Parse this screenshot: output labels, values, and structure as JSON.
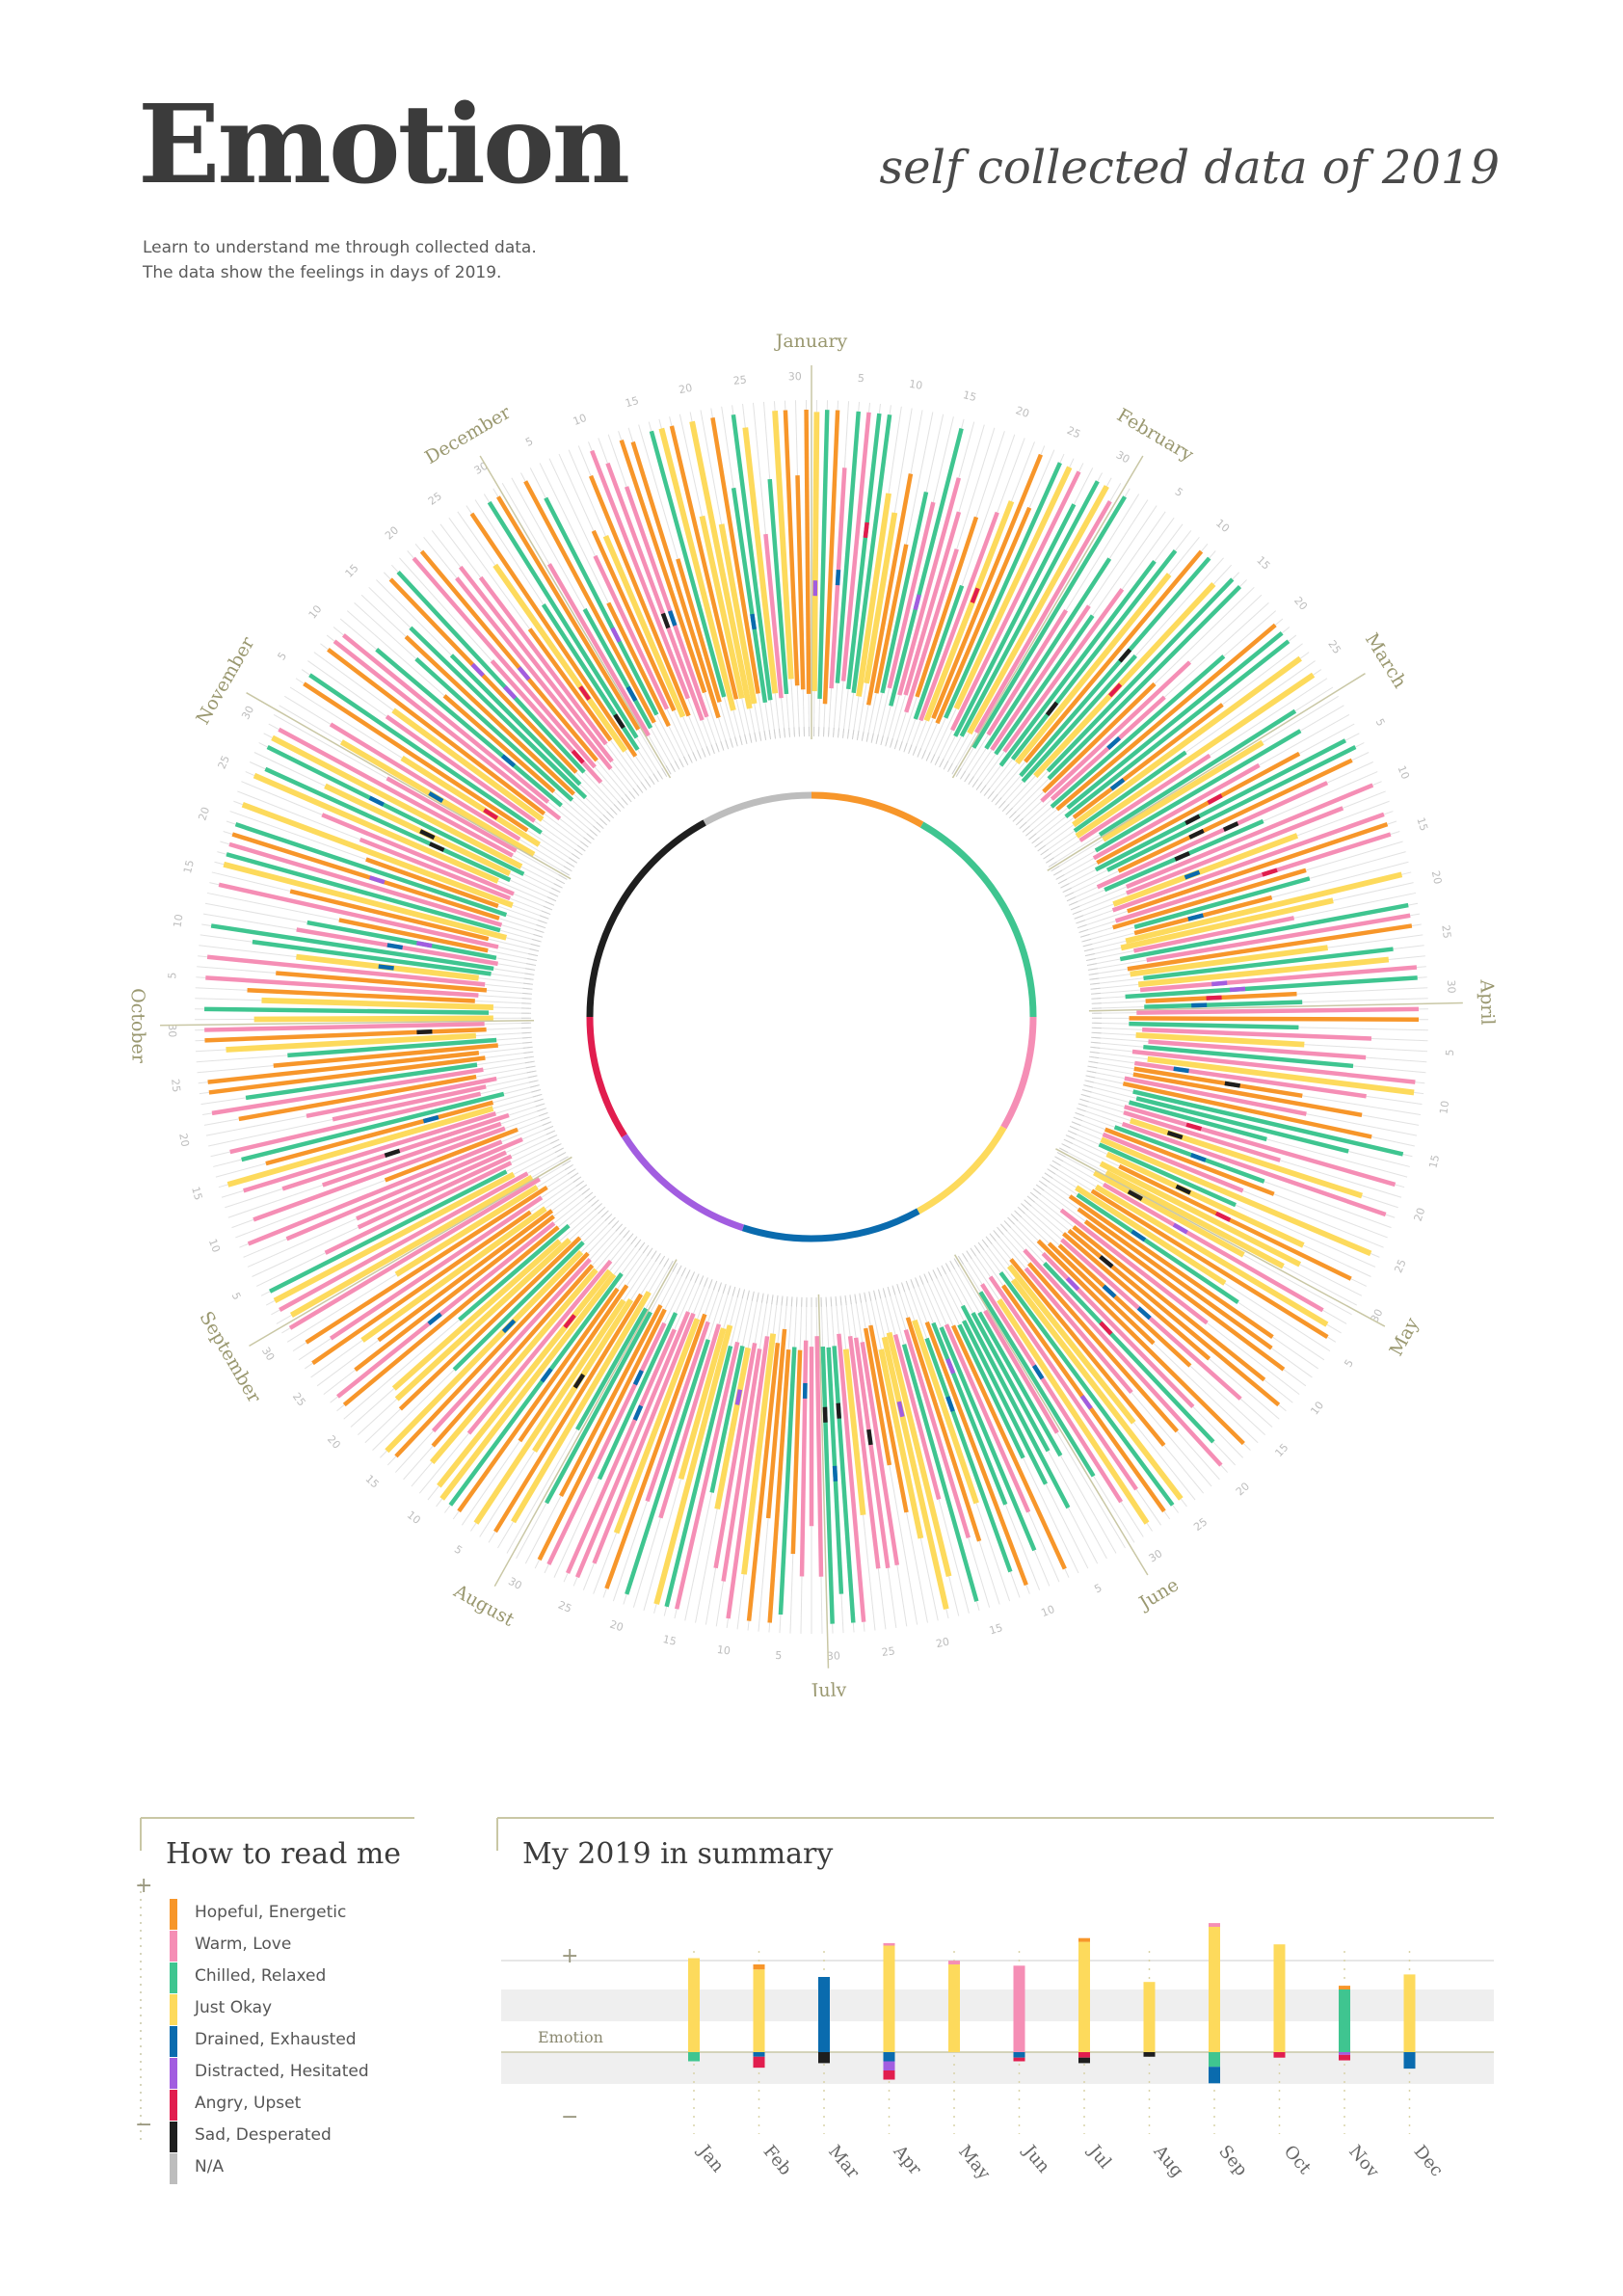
{
  "header": {
    "title": "Emotion",
    "subtitle": "self collected data of 2019",
    "intro_line1": "Learn to understand me through collected data.",
    "intro_line2": "The data show the feelings in days of 2019."
  },
  "colors": {
    "hopeful": "#F7962A",
    "warm": "#F58EB5",
    "chilled": "#3FC590",
    "okay": "#FDDA5C",
    "drained": "#0A6BAE",
    "distracted": "#A25DE0",
    "angry": "#E11D4E",
    "sad": "#1E1E1E",
    "na": "#BDBDBD",
    "accent": "#C9C7A5",
    "grid": "#E2E2E2"
  },
  "legend": {
    "title": "How to read me",
    "plus": "+",
    "minus": "−",
    "items": [
      {
        "key": "hopeful",
        "label": "Hopeful, Energetic"
      },
      {
        "key": "warm",
        "label": "Warm, Love"
      },
      {
        "key": "chilled",
        "label": "Chilled, Relaxed"
      },
      {
        "key": "okay",
        "label": "Just Okay"
      },
      {
        "key": "drained",
        "label": "Drained, Exhausted"
      },
      {
        "key": "distracted",
        "label": "Distracted, Hesitated"
      },
      {
        "key": "angry",
        "label": "Angry, Upset"
      },
      {
        "key": "sad",
        "label": "Sad, Desperated"
      },
      {
        "key": "na",
        "label": "N/A"
      }
    ]
  },
  "summary": {
    "title": "My 2019 in summary",
    "plus": "+",
    "minus": "−",
    "axis_label": "Emotion"
  },
  "chart_data": [
    {
      "type": "radial-bar",
      "description_free": true,
      "months": [
        "January",
        "February",
        "March",
        "April",
        "May",
        "June",
        "July",
        "August",
        "September",
        "October",
        "November",
        "December"
      ],
      "day_ticks": [
        "5",
        "10",
        "15",
        "20",
        "25",
        "30"
      ],
      "ring_segments": [
        {
          "key": "hopeful",
          "from": 0.0,
          "to": 0.083
        },
        {
          "key": "chilled",
          "from": 0.083,
          "to": 0.25
        },
        {
          "key": "warm",
          "from": 0.25,
          "to": 0.333
        },
        {
          "key": "okay",
          "from": 0.333,
          "to": 0.42
        },
        {
          "key": "drained",
          "from": 0.42,
          "to": 0.55
        },
        {
          "key": "distracted",
          "from": 0.55,
          "to": 0.66
        },
        {
          "key": "angry",
          "from": 0.66,
          "to": 0.75
        },
        {
          "key": "sad",
          "from": 0.75,
          "to": 0.92
        },
        {
          "key": "na",
          "from": 0.92,
          "to": 1.0
        }
      ]
    },
    {
      "type": "bar",
      "categories": [
        "Jan",
        "Feb",
        "Mar",
        "Apr",
        "May",
        "Jun",
        "Jul",
        "Aug",
        "Sep",
        "Oct",
        "Nov",
        "Dec"
      ],
      "series_positive": [
        [
          {
            "key": "okay",
            "value": 75
          }
        ],
        [
          {
            "key": "okay",
            "value": 66
          },
          {
            "key": "hopeful",
            "value": 4
          }
        ],
        [
          {
            "key": "drained",
            "value": 60
          }
        ],
        [
          {
            "key": "okay",
            "value": 85
          },
          {
            "key": "warm",
            "value": 2
          }
        ],
        [
          {
            "key": "okay",
            "value": 70
          },
          {
            "key": "warm",
            "value": 3
          }
        ],
        [
          {
            "key": "warm",
            "value": 69
          }
        ],
        [
          {
            "key": "okay",
            "value": 88
          },
          {
            "key": "hopeful",
            "value": 3
          }
        ],
        [
          {
            "key": "okay",
            "value": 56
          }
        ],
        [
          {
            "key": "okay",
            "value": 100
          },
          {
            "key": "warm",
            "value": 3
          }
        ],
        [
          {
            "key": "okay",
            "value": 86
          }
        ],
        [
          {
            "key": "chilled",
            "value": 50
          },
          {
            "key": "hopeful",
            "value": 3
          }
        ],
        [
          {
            "key": "okay",
            "value": 62
          }
        ]
      ],
      "series_negative": [
        [
          {
            "key": "chilled",
            "value": 10
          }
        ],
        [
          {
            "key": "drained",
            "value": 5
          },
          {
            "key": "angry",
            "value": 12
          }
        ],
        [
          {
            "key": "sad",
            "value": 12
          }
        ],
        [
          {
            "key": "drained",
            "value": 10
          },
          {
            "key": "distracted",
            "value": 10
          },
          {
            "key": "angry",
            "value": 10
          }
        ],
        [],
        [
          {
            "key": "drained",
            "value": 6
          },
          {
            "key": "angry",
            "value": 4
          }
        ],
        [
          {
            "key": "angry",
            "value": 6
          },
          {
            "key": "sad",
            "value": 6
          }
        ],
        [
          {
            "key": "sad",
            "value": 5
          }
        ],
        [
          {
            "key": "chilled",
            "value": 16
          },
          {
            "key": "drained",
            "value": 18
          }
        ],
        [
          {
            "key": "angry",
            "value": 6
          }
        ],
        [
          {
            "key": "distracted",
            "value": 3
          },
          {
            "key": "angry",
            "value": 6
          }
        ],
        [
          {
            "key": "drained",
            "value": 18
          }
        ]
      ],
      "ylabel": "Emotion",
      "ylim": [
        -35,
        100
      ]
    }
  ]
}
